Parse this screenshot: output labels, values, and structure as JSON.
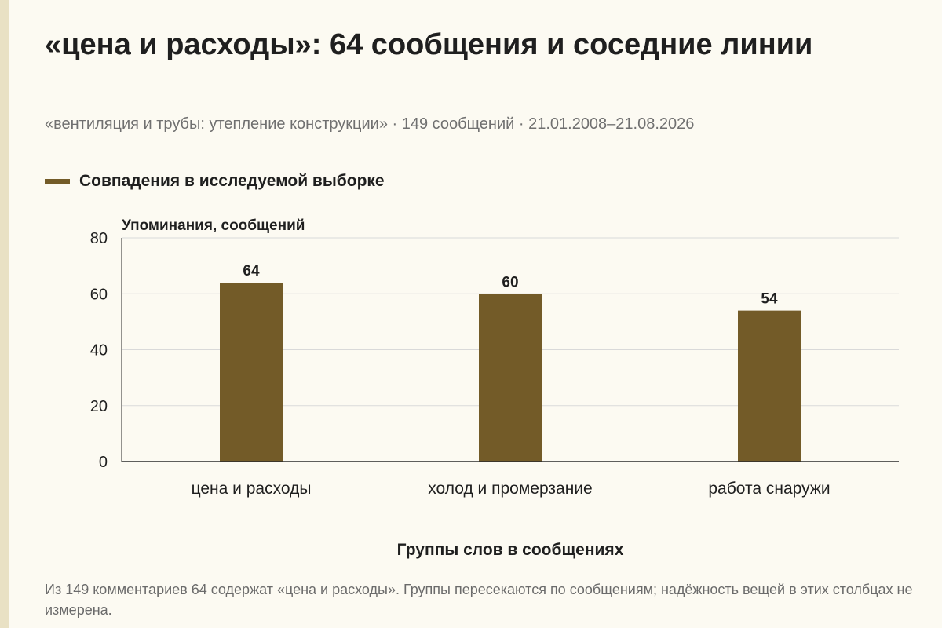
{
  "header": {
    "title": "«цена и расходы»: 64 сообщения и соседние линии",
    "subtitle": "«вентиляция и трубы: утепление конструкции» · 149 сообщений · 21.01.2008–21.08.2026"
  },
  "legend": {
    "label": "Совпадения в исследуемой выборке"
  },
  "colors": {
    "bar": "#735b28",
    "grid": "#d9d9d9",
    "axis": "#2a2a2a",
    "background": "#fcfaf2"
  },
  "chart_data": {
    "type": "bar",
    "categories": [
      "цена и расходы",
      "холод и промерзание",
      "работа снаружи"
    ],
    "series": [
      {
        "name": "Совпадения в исследуемой выборке",
        "values": [
          64,
          60,
          54
        ]
      }
    ],
    "ylabel": "Упоминания, сообщений",
    "xlabel": "Группы слов в сообщениях",
    "ylim": [
      0,
      80
    ],
    "yticks": [
      0,
      20,
      40,
      60,
      80
    ],
    "grid": true,
    "legend_position": "top-left"
  },
  "footer": {
    "note": "Из 149 комментариев 64 содержат «цена и расходы». Группы пересекаются по сообщениям; надёжность вещей в этих столбцах не измерена."
  }
}
